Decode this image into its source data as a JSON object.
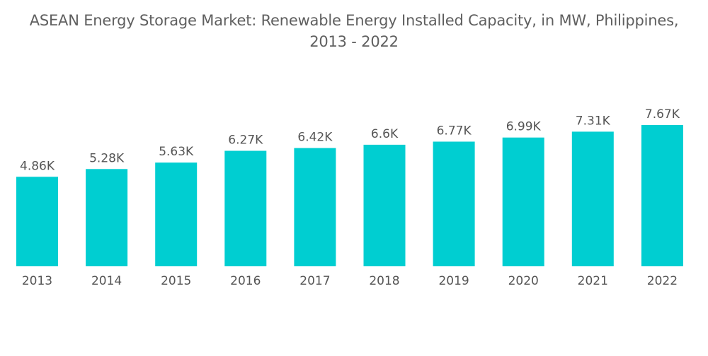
{
  "chart_data": {
    "type": "bar",
    "title_line1": "ASEAN Energy Storage Market: Renewable Energy Installed Capacity, in MW, Philippines,",
    "title_line2": "2013 - 2022",
    "xlabel": "",
    "ylabel": "",
    "categories": [
      "2013",
      "2014",
      "2015",
      "2016",
      "2017",
      "2018",
      "2019",
      "2020",
      "2021",
      "2022"
    ],
    "values": [
      4860,
      5280,
      5630,
      6270,
      6420,
      6600,
      6770,
      6990,
      7310,
      7670
    ],
    "data_labels": [
      "4.86K",
      "5.28K",
      "5.63K",
      "6.27K",
      "6.42K",
      "6.6K",
      "6.77K",
      "6.99K",
      "7.31K",
      "7.67K"
    ],
    "ylim": [
      0,
      7670
    ],
    "grid": false,
    "legend": "none",
    "bar_color": "#00ced1"
  }
}
